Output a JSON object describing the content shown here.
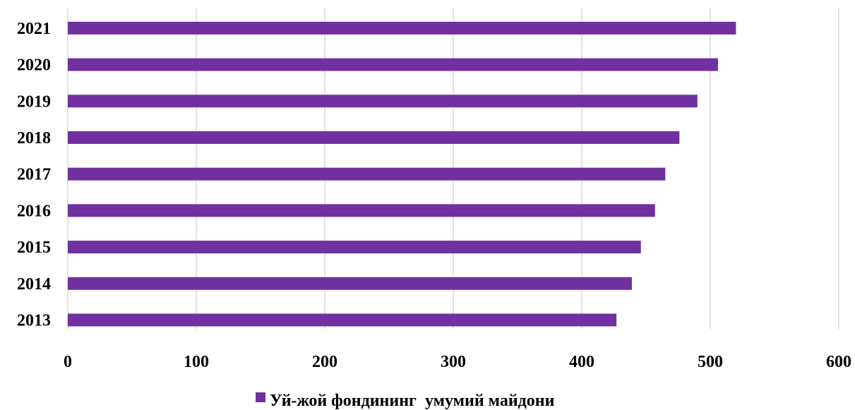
{
  "chart_data": {
    "type": "bar",
    "orientation": "horizontal",
    "categories": [
      "2013",
      "2014",
      "2015",
      "2016",
      "2017",
      "2018",
      "2019",
      "2020",
      "2021"
    ],
    "series": [
      {
        "name": "Уй-жой фондининг  умумий майдони",
        "color": "#7030a0",
        "values": [
          427,
          439,
          446,
          457,
          465,
          476,
          490,
          506,
          520
        ]
      }
    ],
    "xlim": [
      0,
      600
    ],
    "x_ticks": [
      "0",
      "100",
      "200",
      "300",
      "400",
      "500",
      "600"
    ],
    "grid": true,
    "legend_position": "bottom"
  }
}
